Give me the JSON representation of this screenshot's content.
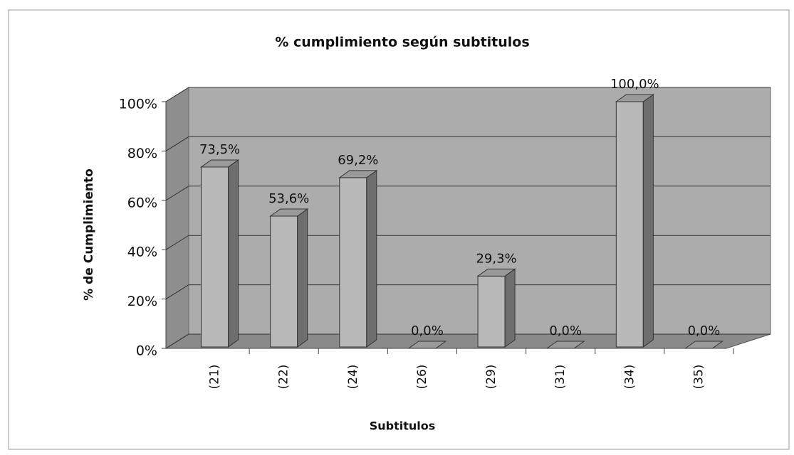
{
  "chart_data": {
    "type": "bar3d",
    "title": "% cumplimiento según subtitulos",
    "x_label": "Subtitulos",
    "y_label": "% de Cumplimiento",
    "categories": [
      "(21)",
      "(22)",
      "(24)",
      "(26)",
      "(29)",
      "(31)",
      "(34)",
      "(35)"
    ],
    "values": [
      73.5,
      53.6,
      69.2,
      0,
      29.3,
      0,
      100,
      0
    ],
    "value_labels": [
      "73,5%",
      "53,6%",
      "69,2%",
      "0,0%",
      "29,3%",
      "0,0%",
      "100,0%",
      "0,0%"
    ],
    "color": "#b9b9b9",
    "ylim": [
      0,
      100
    ],
    "yticks": [
      {
        "value": 0,
        "label": "0%"
      },
      {
        "value": 20,
        "label": "20%"
      },
      {
        "value": 40,
        "label": "40%"
      },
      {
        "value": 60,
        "label": "60%"
      },
      {
        "value": 80,
        "label": "80%"
      },
      {
        "value": 100,
        "label": "100%"
      }
    ],
    "grid": true
  }
}
